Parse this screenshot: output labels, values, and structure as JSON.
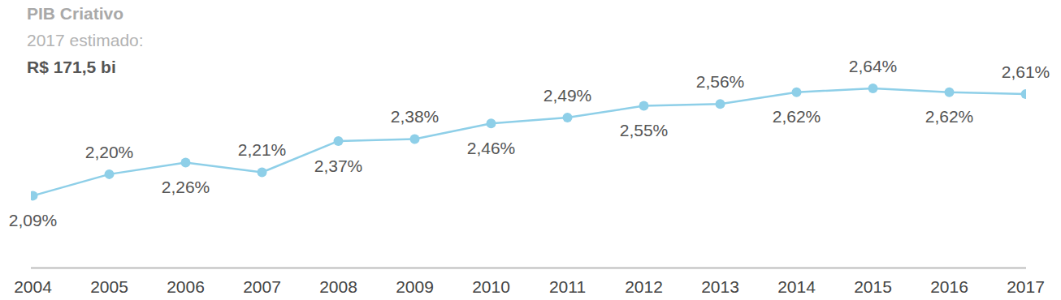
{
  "chart_data": {
    "type": "line",
    "title": "PIB Criativo",
    "subtitle": "2017 estimado:",
    "annotations": [
      "R$ 171,5 bi"
    ],
    "categories": [
      "2004",
      "2005",
      "2006",
      "2007",
      "2008",
      "2009",
      "2010",
      "2011",
      "2012",
      "2013",
      "2014",
      "2015",
      "2016",
      "2017"
    ],
    "values": [
      2.09,
      2.2,
      2.26,
      2.21,
      2.37,
      2.38,
      2.46,
      2.49,
      2.55,
      2.56,
      2.62,
      2.64,
      2.62,
      2.61
    ],
    "value_labels": [
      "2,09%",
      "2,20%",
      "2,26%",
      "2,21%",
      "2,37%",
      "2,38%",
      "2,46%",
      "2,49%",
      "2,55%",
      "2,56%",
      "2,62%",
      "2,64%",
      "2,62%",
      "2,61%"
    ],
    "color": "#8ecfe8",
    "marker": "circle",
    "line_style": "solid",
    "ylim": [
      1.72,
      3.09
    ],
    "yticks": [],
    "tick_labels": "x",
    "data_labels": true,
    "grid": false
  }
}
